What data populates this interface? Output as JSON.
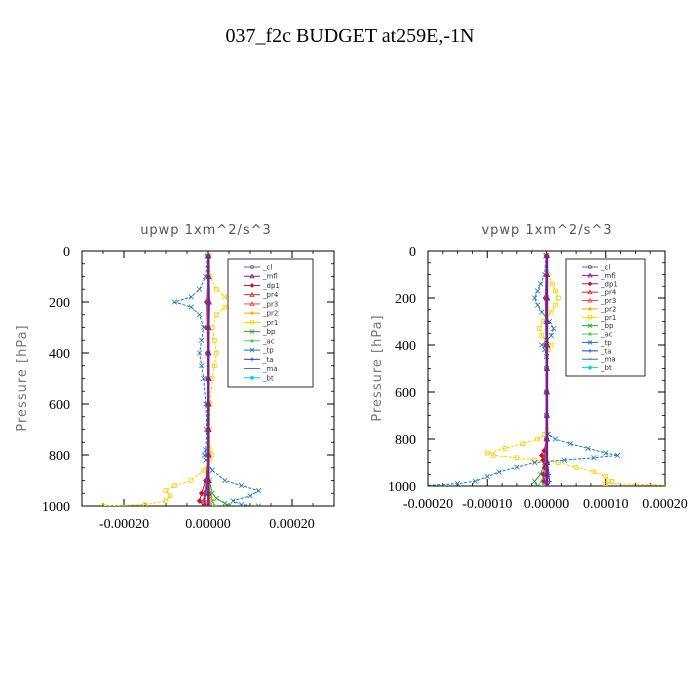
{
  "title": "037_f2c  BUDGET at259E,-1N",
  "legend_entries": [
    "_cl",
    "_mfl",
    "_dp1",
    "_pr4",
    "_pr3",
    "_pr2",
    "_pr1",
    "_bp",
    "_ac",
    "_tp",
    "_ta",
    "_ma",
    "_bt"
  ],
  "series_colors": {
    "_cl": "#7b5aa6",
    "_mfl": "#7a1f8c",
    "_dp1": "#c0143c",
    "_pr4": "#d62728",
    "_pr3": "#ff4040",
    "_pr2": "#ffa500",
    "_pr1": "#f5d000",
    "_bp": "#2ca02c",
    "_ac": "#50c850",
    "_tp": "#1f77b4",
    "_ta": "#2040c0",
    "_ma": "#4a6fa5",
    "_bt": "#00d0e0"
  },
  "chart_data": [
    {
      "type": "line",
      "title": "upwp   1xm^2/s^3",
      "ylabel": "Pressure [hPa]",
      "xlabel": "",
      "xlim": [
        -0.0003,
        0.0003
      ],
      "ylim": [
        1000,
        0
      ],
      "xticks": [
        "-0.00020",
        "0.00000",
        "0.00020"
      ],
      "yticks": [
        "0",
        "200",
        "400",
        "600",
        "800",
        "1000"
      ],
      "legend_position": "top-right",
      "series": [
        {
          "name": "_cl",
          "y": [
            20,
            100,
            200,
            300,
            400,
            500,
            600,
            700,
            800,
            900,
            950,
            1000
          ],
          "x": [
            0,
            0,
            0,
            0,
            0,
            0,
            0,
            0,
            0,
            0,
            0,
            0
          ]
        },
        {
          "name": "_mfl",
          "y": [
            20,
            100,
            200,
            300,
            400,
            500,
            600,
            700,
            800,
            900,
            950,
            1000
          ],
          "x": [
            1e-06,
            1e-06,
            2e-06,
            1e-06,
            1e-06,
            1e-06,
            1e-06,
            1e-06,
            1e-06,
            1e-06,
            1e-06,
            1e-06
          ]
        },
        {
          "name": "_dp1",
          "y": [
            20,
            100,
            200,
            300,
            400,
            500,
            600,
            700,
            800,
            900,
            950,
            980,
            1000
          ],
          "x": [
            0,
            0,
            -3e-06,
            -2e-06,
            -1e-06,
            0,
            0,
            0,
            0,
            -5e-06,
            -1.5e-05,
            -2e-05,
            -1e-05
          ]
        },
        {
          "name": "_pr4",
          "y": [
            20,
            200,
            400,
            600,
            800,
            900,
            950,
            980,
            1000
          ],
          "x": [
            0,
            2e-06,
            1e-06,
            0,
            0,
            -3e-06,
            -8e-06,
            -1e-05,
            -5e-06
          ]
        },
        {
          "name": "_pr3",
          "y": [
            20,
            200,
            400,
            600,
            800,
            900,
            960,
            990,
            1000
          ],
          "x": [
            0,
            1e-06,
            0,
            0,
            0,
            2e-06,
            4e-06,
            3e-06,
            0
          ]
        },
        {
          "name": "_pr2",
          "y": [
            20,
            200,
            400,
            600,
            800,
            900,
            960,
            990,
            1000
          ],
          "x": [
            0,
            2e-06,
            1e-06,
            0,
            0,
            3e-06,
            5e-06,
            4e-06,
            0
          ]
        },
        {
          "name": "_pr1",
          "y": [
            20,
            100,
            150,
            180,
            200,
            220,
            250,
            300,
            350,
            400,
            450,
            500,
            600,
            700,
            780,
            800,
            820,
            860,
            900,
            920,
            940,
            960,
            980,
            995,
            1000
          ],
          "x": [
            2e-06,
            5e-06,
            2e-05,
            4e-05,
            7e-05,
            4e-05,
            2e-05,
            1e-05,
            1.5e-05,
            2e-05,
            1.5e-05,
            1e-05,
            5e-06,
            3e-06,
            5e-06,
            8e-06,
            5e-06,
            -1e-05,
            -4e-05,
            -8e-05,
            -0.0001,
            -9e-05,
            -0.0001,
            -0.00015,
            -0.00025
          ]
        },
        {
          "name": "_bp",
          "y": [
            20,
            200,
            400,
            600,
            800,
            900,
            950,
            970,
            990,
            1000
          ],
          "x": [
            0,
            -1e-06,
            0,
            0,
            0,
            3e-06,
            1e-05,
            2e-05,
            4e-05,
            5e-05
          ]
        },
        {
          "name": "_ac",
          "y": [
            20,
            200,
            400,
            600,
            800,
            900,
            950,
            980,
            1000
          ],
          "x": [
            0,
            0,
            0,
            0,
            0,
            2e-06,
            5e-06,
            1e-05,
            1.5e-05
          ]
        },
        {
          "name": "_tp",
          "y": [
            20,
            100,
            150,
            180,
            200,
            220,
            250,
            300,
            350,
            400,
            450,
            500,
            600,
            700,
            780,
            800,
            820,
            860,
            900,
            920,
            940,
            960,
            980,
            995,
            1000
          ],
          "x": [
            -2e-06,
            -5e-06,
            -2e-05,
            -4e-05,
            -8e-05,
            -4e-05,
            -2e-05,
            -1e-05,
            -1.5e-05,
            -2e-05,
            -1.5e-05,
            -1e-05,
            -5e-06,
            -3e-06,
            -5e-06,
            -8e-06,
            -5e-06,
            1e-05,
            4e-05,
            8e-05,
            0.00012,
            0.0001,
            6e-05,
            8e-05,
            0.00012
          ]
        },
        {
          "name": "_ta",
          "y": [
            20,
            200,
            400,
            600,
            800,
            900,
            950,
            980,
            1000
          ],
          "x": [
            0,
            -1e-06,
            0,
            0,
            0,
            -2e-06,
            -5e-06,
            -8e-06,
            -1e-05
          ]
        },
        {
          "name": "_ma",
          "y": [
            20,
            200,
            400,
            600,
            800,
            900,
            950,
            1000
          ],
          "x": [
            0,
            0,
            0,
            0,
            0,
            0,
            0,
            0
          ]
        },
        {
          "name": "_bt",
          "y": [
            20,
            200,
            400,
            600,
            800,
            900,
            950,
            1000
          ],
          "x": [
            0,
            0,
            0,
            0,
            0,
            0,
            0,
            0
          ]
        }
      ]
    },
    {
      "type": "line",
      "title": "vpwp   1xm^2/s^3",
      "ylabel": "Pressure [hPa]",
      "xlabel": "",
      "xlim": [
        -0.0002,
        0.0002
      ],
      "ylim": [
        1000,
        0
      ],
      "xticks": [
        "-0.00020",
        "-0.00010",
        "0.00000",
        "0.00010",
        "0.00020"
      ],
      "yticks": [
        "0",
        "200",
        "400",
        "600",
        "800",
        "1000"
      ],
      "legend_position": "top-right",
      "series": [
        {
          "name": "_cl",
          "y": [
            20,
            100,
            200,
            300,
            400,
            500,
            600,
            700,
            800,
            900,
            950,
            1000
          ],
          "x": [
            0,
            0,
            0,
            0,
            0,
            0,
            0,
            0,
            0,
            0,
            0,
            0
          ]
        },
        {
          "name": "_mfl",
          "y": [
            20,
            100,
            200,
            300,
            400,
            500,
            600,
            700,
            800,
            900,
            950,
            1000
          ],
          "x": [
            1e-06,
            1e-06,
            1e-06,
            1e-06,
            1e-06,
            1e-06,
            1e-06,
            1e-06,
            1e-06,
            1e-06,
            1e-06,
            1e-06
          ]
        },
        {
          "name": "_dp1",
          "y": [
            20,
            200,
            400,
            600,
            800,
            850,
            870,
            890,
            920,
            950,
            980,
            1000
          ],
          "x": [
            0,
            -2e-06,
            -1e-06,
            0,
            0,
            -4e-06,
            -8e-06,
            -6e-06,
            -3e-06,
            -5e-06,
            -4e-06,
            0
          ]
        },
        {
          "name": "_pr4",
          "y": [
            20,
            200,
            400,
            600,
            800,
            850,
            880,
            920,
            960,
            1000
          ],
          "x": [
            0,
            1e-06,
            0,
            0,
            0,
            -2e-06,
            -4e-06,
            -2e-06,
            -1e-06,
            0
          ]
        },
        {
          "name": "_pr3",
          "y": [
            20,
            200,
            400,
            600,
            800,
            900,
            1000
          ],
          "x": [
            0,
            1e-06,
            0,
            0,
            0,
            1e-06,
            0
          ]
        },
        {
          "name": "_pr2",
          "y": [
            20,
            200,
            400,
            600,
            800,
            900,
            1000
          ],
          "x": [
            0,
            1e-06,
            0,
            0,
            0,
            2e-06,
            0
          ]
        },
        {
          "name": "_pr1",
          "y": [
            20,
            100,
            140,
            170,
            200,
            230,
            260,
            300,
            330,
            360,
            380,
            400,
            420,
            450,
            500,
            600,
            700,
            780,
            800,
            820,
            840,
            860,
            870,
            880,
            890,
            900,
            920,
            940,
            960,
            980,
            990,
            1000
          ],
          "x": [
            1e-06,
            3e-06,
            1e-05,
            1.5e-05,
            2e-05,
            1.5e-05,
            8e-06,
            -5e-06,
            -1.2e-05,
            -8e-06,
            0,
            8e-06,
            3e-06,
            0,
            0,
            0,
            0,
            -3e-06,
            -1.5e-05,
            -4e-05,
            -7e-05,
            -0.0001,
            -9e-05,
            -5e-05,
            -2e-05,
            2e-05,
            5e-05,
            8e-05,
            0.0001,
            0.00011,
            0.0001,
            0.00025
          ]
        },
        {
          "name": "_bp",
          "y": [
            20,
            200,
            400,
            600,
            800,
            900,
            950,
            980,
            1000
          ],
          "x": [
            0,
            0,
            0,
            0,
            0,
            -3e-06,
            -1e-05,
            -2e-05,
            -1.5e-05
          ]
        },
        {
          "name": "_ac",
          "y": [
            20,
            200,
            400,
            600,
            800,
            900,
            950,
            980,
            1000
          ],
          "x": [
            0,
            0,
            0,
            0,
            0,
            -2e-06,
            -5e-06,
            -8e-06,
            -5e-06
          ]
        },
        {
          "name": "_tp",
          "y": [
            20,
            100,
            140,
            170,
            200,
            230,
            260,
            300,
            330,
            360,
            380,
            400,
            420,
            450,
            500,
            600,
            700,
            780,
            800,
            820,
            840,
            860,
            870,
            880,
            890,
            900,
            920,
            940,
            960,
            980,
            990,
            1000
          ],
          "x": [
            -1e-06,
            -3e-06,
            -1e-05,
            -1.5e-05,
            -2e-05,
            -1.5e-05,
            -8e-06,
            5e-06,
            1.2e-05,
            8e-06,
            0,
            -8e-06,
            -3e-06,
            0,
            0,
            0,
            0,
            3e-06,
            1.5e-05,
            4e-05,
            7e-05,
            0.0001,
            0.00012,
            8e-05,
            3e-05,
            -2e-05,
            -5e-05,
            -8e-05,
            -0.0001,
            -0.00012,
            -0.00015,
            -0.00022
          ]
        },
        {
          "name": "_ta",
          "y": [
            20,
            200,
            400,
            600,
            800,
            900,
            950,
            980,
            1000
          ],
          "x": [
            0,
            0,
            0,
            0,
            0,
            2e-06,
            4e-06,
            5e-06,
            3e-06
          ]
        },
        {
          "name": "_ma",
          "y": [
            20,
            200,
            400,
            600,
            800,
            900,
            950,
            1000
          ],
          "x": [
            0,
            0,
            0,
            0,
            0,
            0,
            0,
            0
          ]
        },
        {
          "name": "_bt",
          "y": [
            20,
            200,
            400,
            600,
            800,
            900,
            950,
            1000
          ],
          "x": [
            0,
            0,
            0,
            0,
            0,
            0,
            0,
            0
          ]
        }
      ]
    }
  ]
}
